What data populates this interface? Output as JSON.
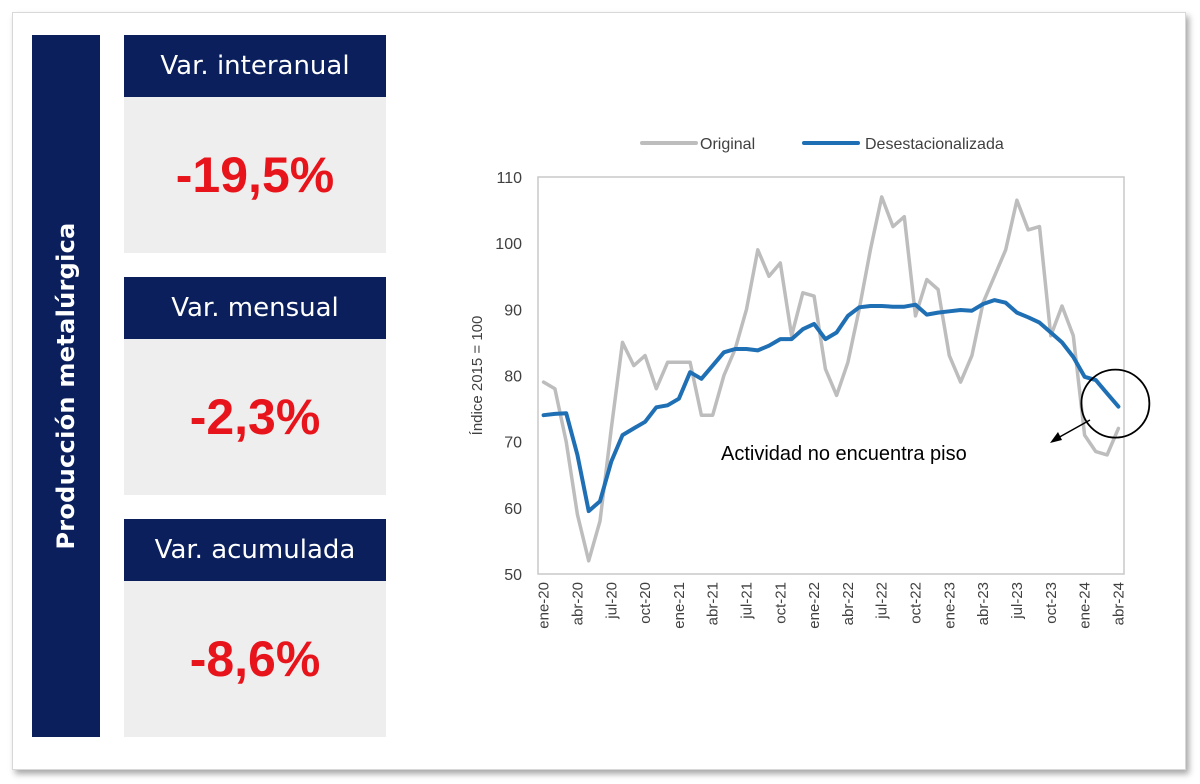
{
  "sidebar": {
    "title": "Producción metalúrgica"
  },
  "cards": [
    {
      "header": "Var. interanual",
      "value": "-19,5%"
    },
    {
      "header": "Var. mensual",
      "value": "-2,3%"
    },
    {
      "header": "Var. acumulada",
      "value": "-8,6%"
    }
  ],
  "colors": {
    "navy": "#0b1f5c",
    "value_red": "#e8141b",
    "original": "#bdbdbd",
    "desestacionalizada": "#1f6fb5"
  },
  "chart_data": {
    "type": "line",
    "ylabel": "Índice 2015 = 100",
    "ylim": [
      50,
      110
    ],
    "yticks": [
      50,
      60,
      70,
      80,
      90,
      100,
      110
    ],
    "grid": false,
    "legend_position": "top",
    "x": [
      "ene-20",
      "feb-20",
      "mar-20",
      "abr-20",
      "may-20",
      "jun-20",
      "jul-20",
      "ago-20",
      "sep-20",
      "oct-20",
      "nov-20",
      "dic-20",
      "ene-21",
      "feb-21",
      "mar-21",
      "abr-21",
      "may-21",
      "jun-21",
      "jul-21",
      "ago-21",
      "sep-21",
      "oct-21",
      "nov-21",
      "dic-21",
      "ene-22",
      "feb-22",
      "mar-22",
      "abr-22",
      "may-22",
      "jun-22",
      "jul-22",
      "ago-22",
      "sep-22",
      "oct-22",
      "nov-22",
      "dic-22",
      "ene-23",
      "feb-23",
      "mar-23",
      "abr-23",
      "may-23",
      "jun-23",
      "jul-23",
      "ago-23",
      "sep-23",
      "oct-23",
      "nov-23",
      "dic-23",
      "ene-24",
      "feb-24",
      "mar-24",
      "abr-24"
    ],
    "x_tick_labels": [
      "ene-20",
      "abr-20",
      "jul-20",
      "oct-20",
      "ene-21",
      "abr-21",
      "jul-21",
      "oct-21",
      "ene-22",
      "abr-22",
      "jul-22",
      "oct-22",
      "ene-23",
      "abr-23",
      "jul-23",
      "oct-23",
      "ene-24",
      "abr-24"
    ],
    "series": [
      {
        "name": "Original",
        "values": [
          79,
          78,
          70,
          59,
          52,
          58,
          72,
          85,
          81.5,
          83,
          78,
          82,
          82,
          82,
          74,
          74,
          80,
          84,
          90,
          99,
          95,
          97,
          86,
          92.5,
          92,
          81,
          77,
          82,
          90,
          99,
          107,
          102.5,
          104,
          89,
          94.5,
          93,
          83,
          79,
          83,
          91,
          95,
          99,
          106.5,
          102,
          102.5,
          86,
          90.5,
          86,
          71,
          68.5,
          68,
          72
        ]
      },
      {
        "name": "Desestacionalizada",
        "values": [
          74,
          74.2,
          74.3,
          68,
          59.5,
          61,
          67,
          71,
          72,
          73,
          75.2,
          75.5,
          76.5,
          80.5,
          79.5,
          81.5,
          83.5,
          84,
          84,
          83.8,
          84.5,
          85.5,
          85.5,
          87,
          87.8,
          85.5,
          86.5,
          89,
          90.3,
          90.5,
          90.5,
          90.4,
          90.4,
          90.7,
          89.2,
          89.5,
          89.7,
          89.9,
          89.8,
          90.8,
          91.4,
          91,
          89.5,
          88.8,
          88,
          86.5,
          85,
          82.8,
          79.8,
          79.3,
          77.3,
          75.3
        ]
      }
    ],
    "annotation": {
      "text": "Actividad no encuentra piso",
      "target": "abr-24"
    }
  }
}
